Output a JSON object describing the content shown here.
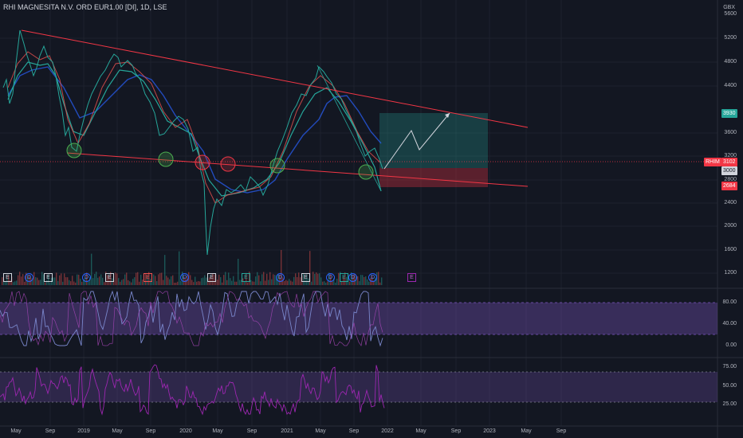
{
  "header": {
    "title": "RHI MAGNESITA N.V. ORD EUR1.00 [DI], 1D, LSE",
    "currency": "GBX"
  },
  "price_axis": {
    "labels": [
      "5600",
      "5200",
      "4800",
      "4400",
      "3600",
      "3200",
      "2800",
      "2400",
      "2000",
      "1600",
      "1200"
    ]
  },
  "price_tags": {
    "target": "3930",
    "symbol": "RHIM",
    "last": "3102",
    "entry": "3000",
    "stop": "2684"
  },
  "stoch_axis": {
    "labels": [
      "80.00",
      "40.00",
      "0.00"
    ]
  },
  "rsi_axis": {
    "labels": [
      "75.00",
      "50.00",
      "25.00"
    ]
  },
  "time_axis": {
    "labels": [
      "May",
      "Sep",
      "2019",
      "May",
      "Sep",
      "2020",
      "May",
      "Sep",
      "2021",
      "May",
      "Sep",
      "2022",
      "May",
      "Sep",
      "2023",
      "May",
      "Sep"
    ]
  },
  "events": [
    "E",
    "D",
    "E",
    "D",
    "E",
    "E",
    "D",
    "E",
    "E",
    "D",
    "E",
    "D",
    "E",
    "D",
    "D",
    "E"
  ],
  "colors": {
    "background": "#131722",
    "trendline": "#f23645",
    "target_zone": "#26a69a",
    "stop_zone": "#f23645",
    "oscillator": "#7e57c2",
    "circle": "#4caf50"
  }
}
